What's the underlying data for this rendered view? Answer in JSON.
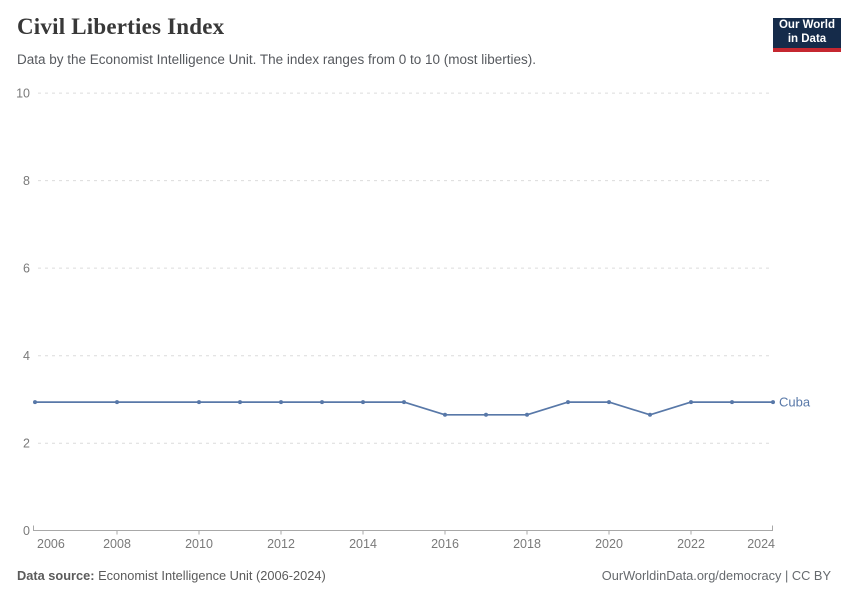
{
  "header": {
    "title": "Civil Liberties Index",
    "subtitle": "Data by the Economist Intelligence Unit. The index ranges from 0 to 10 (most liberties).",
    "logo": {
      "line1": "Our World",
      "line2": "in Data"
    }
  },
  "footer": {
    "source_label": "Data source:",
    "source_value": "Economist Intelligence Unit (2006-2024)",
    "credit": "OurWorldinData.org/democracy | CC BY"
  },
  "colors": {
    "series": "#5878A8",
    "grid": "#DCDCDC",
    "axis": "#A8A8A8",
    "tick_text": "#7A7A7A",
    "logo_bg": "#152B4A",
    "logo_red": "#C52730"
  },
  "chart_data": {
    "type": "line",
    "title": "Civil Liberties Index",
    "subtitle": "Data by the Economist Intelligence Unit. The index ranges from 0 to 10 (most liberties).",
    "xlabel": "",
    "ylabel": "",
    "xlim": [
      2006,
      2024
    ],
    "ylim": [
      0,
      10
    ],
    "x_ticks": [
      2006,
      2008,
      2010,
      2012,
      2014,
      2016,
      2018,
      2020,
      2022,
      2024
    ],
    "y_ticks": [
      0,
      2,
      4,
      6,
      8,
      10
    ],
    "grid": "horizontal-dashed",
    "legend": "end-of-line-label",
    "series": [
      {
        "name": "Cuba",
        "color": "#5878A8",
        "x": [
          2006,
          2008,
          2010,
          2011,
          2012,
          2013,
          2014,
          2015,
          2016,
          2017,
          2018,
          2019,
          2020,
          2021,
          2022,
          2023,
          2024
        ],
        "y": [
          2.94,
          2.94,
          2.94,
          2.94,
          2.94,
          2.94,
          2.94,
          2.94,
          2.65,
          2.65,
          2.65,
          2.94,
          2.94,
          2.65,
          2.94,
          2.94,
          2.94
        ]
      }
    ]
  }
}
